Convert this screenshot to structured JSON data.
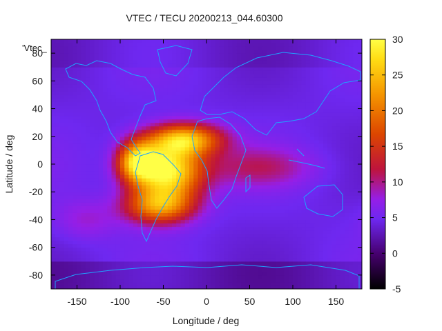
{
  "chart_data": {
    "type": "heatmap",
    "title": "VTEC / TECU 20200213_044.60300",
    "xlabel": "Longitude / deg",
    "ylabel": "Latitude / deg",
    "xlim": [
      -180,
      180
    ],
    "ylim": [
      -90,
      90
    ],
    "xticks": [
      -150,
      -100,
      -50,
      0,
      50,
      100,
      150
    ],
    "yticks": [
      -80,
      -60,
      -40,
      -20,
      0,
      20,
      40,
      60,
      80
    ],
    "x_tick_labels": [
      "-150",
      "-100",
      "-50",
      "0",
      "50",
      "100",
      "150"
    ],
    "y_tick_labels": [
      "-80",
      "-60",
      "-40",
      "-20",
      "0",
      "20",
      "40",
      "60",
      "80"
    ],
    "legend_key": "'Vtec_",
    "colorbar": {
      "min": -5,
      "max": 30,
      "ticks": [
        -5,
        0,
        5,
        10,
        15,
        20,
        25,
        30
      ],
      "tick_labels": [
        "-5",
        "0",
        "5",
        "10",
        "15",
        "20",
        "25",
        "30"
      ],
      "palette": "black-purple-red-orange-yellow"
    },
    "background_value": 4.5,
    "features": [
      {
        "name": "equatorial anomaly main",
        "lon": -45,
        "lat": -5,
        "value": 30,
        "sigma_lon": 28,
        "sigma_lat": 14
      },
      {
        "name": "northern crest",
        "lon": -25,
        "lat": 18,
        "value": 24,
        "sigma_lon": 30,
        "sigma_lat": 8
      },
      {
        "name": "western crest",
        "lon": -80,
        "lat": 2,
        "value": 24,
        "sigma_lon": 16,
        "sigma_lat": 10
      },
      {
        "name": "southern crest",
        "lon": -55,
        "lat": -30,
        "value": 21,
        "sigma_lon": 28,
        "sigma_lat": 9
      },
      {
        "name": "eastern tail",
        "lon": 60,
        "lat": -2,
        "value": 10,
        "sigma_lon": 45,
        "sigma_lat": 10
      },
      {
        "name": "south pacific patch",
        "lon": -140,
        "lat": -40,
        "value": 8,
        "sigma_lon": 25,
        "sigma_lat": 10
      }
    ]
  }
}
